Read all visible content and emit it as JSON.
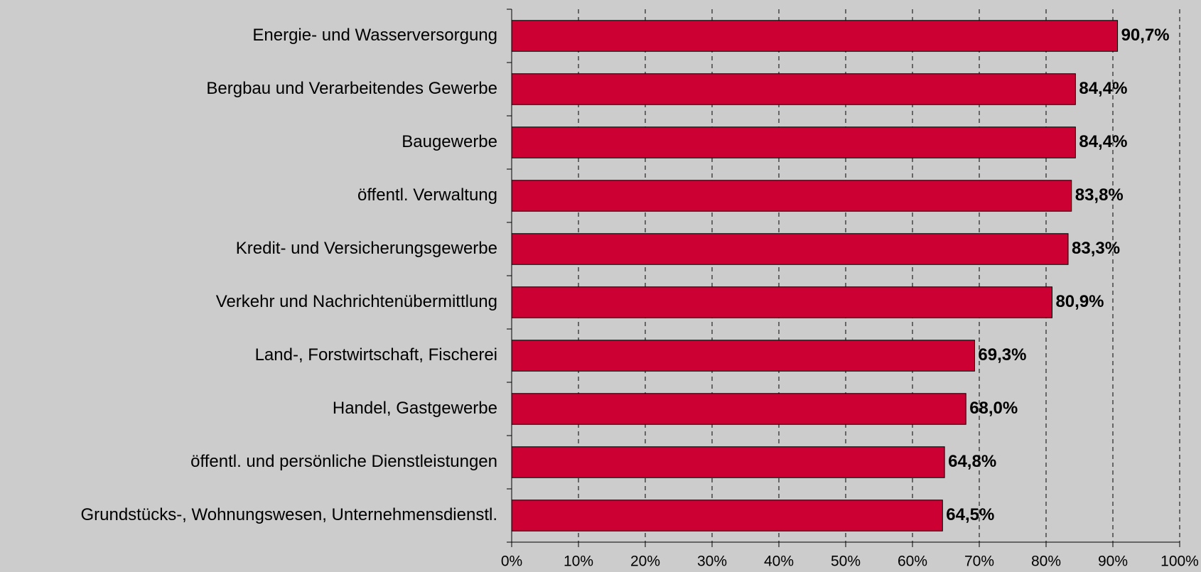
{
  "chart_data": {
    "type": "bar",
    "orientation": "horizontal",
    "categories": [
      "Energie- und Wasserversorgung",
      "Bergbau und Verarbeitendes Gewerbe",
      "Baugewerbe",
      "öffentl. Verwaltung",
      "Kredit- und Versicherungsgewerbe",
      "Verkehr und Nachrichtenübermittlung",
      "Land-, Forstwirtschaft, Fischerei",
      "Handel, Gastgewerbe",
      "öffentl. und persönliche Dienstleistungen",
      "Grundstücks-, Wohnungswesen, Unternehmensdienstl."
    ],
    "values": [
      90.7,
      84.4,
      84.4,
      83.8,
      83.3,
      80.9,
      69.3,
      68.0,
      64.8,
      64.5
    ],
    "value_labels": [
      "90,7%",
      "84,4%",
      "84,4%",
      "83,8%",
      "83,3%",
      "80,9%",
      "69,3%",
      "68,0%",
      "64,8%",
      "64,5%"
    ],
    "color": "#cc0033",
    "xlim": [
      0,
      100
    ],
    "xticks": [
      {
        "value": 0,
        "label": "0%"
      },
      {
        "value": 10,
        "label": "10%"
      },
      {
        "value": 20,
        "label": "20%"
      },
      {
        "value": 30,
        "label": "30%"
      },
      {
        "value": 40,
        "label": "40%"
      },
      {
        "value": 50,
        "label": "50%"
      },
      {
        "value": 60,
        "label": "60%"
      },
      {
        "value": 70,
        "label": "70%"
      },
      {
        "value": 80,
        "label": "80%"
      },
      {
        "value": 90,
        "label": "90%"
      },
      {
        "value": 100,
        "label": "100%"
      }
    ],
    "grid": true
  }
}
